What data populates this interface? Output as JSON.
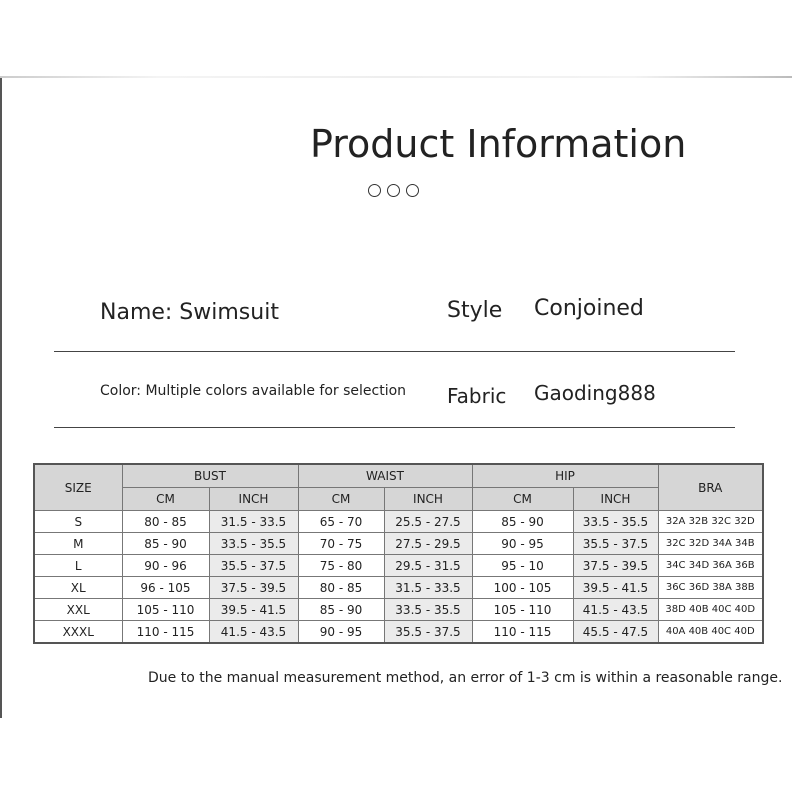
{
  "title": "Product Information",
  "info": {
    "name": "Name: Swimsuit",
    "style_label": "Style",
    "style_value": "Conjoined",
    "color": "Color: Multiple colors available for selection",
    "fabric_label": "Fabric",
    "fabric_value": "Gaoding888"
  },
  "table": {
    "headers": {
      "size": "SIZE",
      "bust": "BUST",
      "waist": "WAIST",
      "hip": "HIP",
      "bra": "BRA",
      "cm": "CM",
      "inch": "INCH"
    },
    "rows": [
      [
        "S",
        "80 - 85",
        "31.5 - 33.5",
        "65 - 70",
        "25.5 - 27.5",
        "85 - 90",
        "33.5 - 35.5",
        "32A 32B 32C 32D"
      ],
      [
        "M",
        "85 - 90",
        "33.5 - 35.5",
        "70 - 75",
        "27.5 - 29.5",
        "90 - 95",
        "35.5 - 37.5",
        "32C 32D 34A 34B"
      ],
      [
        "L",
        "90 - 96",
        "35.5 - 37.5",
        "75 - 80",
        "29.5 - 31.5",
        "95 - 10",
        "37.5 - 39.5",
        "34C 34D 36A 36B"
      ],
      [
        "XL",
        "96 - 105",
        "37.5 - 39.5",
        "80 - 85",
        "31.5 - 33.5",
        "100 - 105",
        "39.5 - 41.5",
        "36C 36D 38A 38B"
      ],
      [
        "XXL",
        "105 - 110",
        "39.5 - 41.5",
        "85 - 90",
        "33.5 - 35.5",
        "105 - 110",
        "41.5 - 43.5",
        "38D 40B 40C 40D"
      ],
      [
        "XXXL",
        "110 - 115",
        "41.5 - 43.5",
        "90 - 95",
        "35.5 - 37.5",
        "110 - 115",
        "45.5 - 47.5",
        "40A 40B 40C 40D"
      ]
    ]
  },
  "note": "Due to the manual measurement method, an error of 1-3 cm is within a reasonable range."
}
